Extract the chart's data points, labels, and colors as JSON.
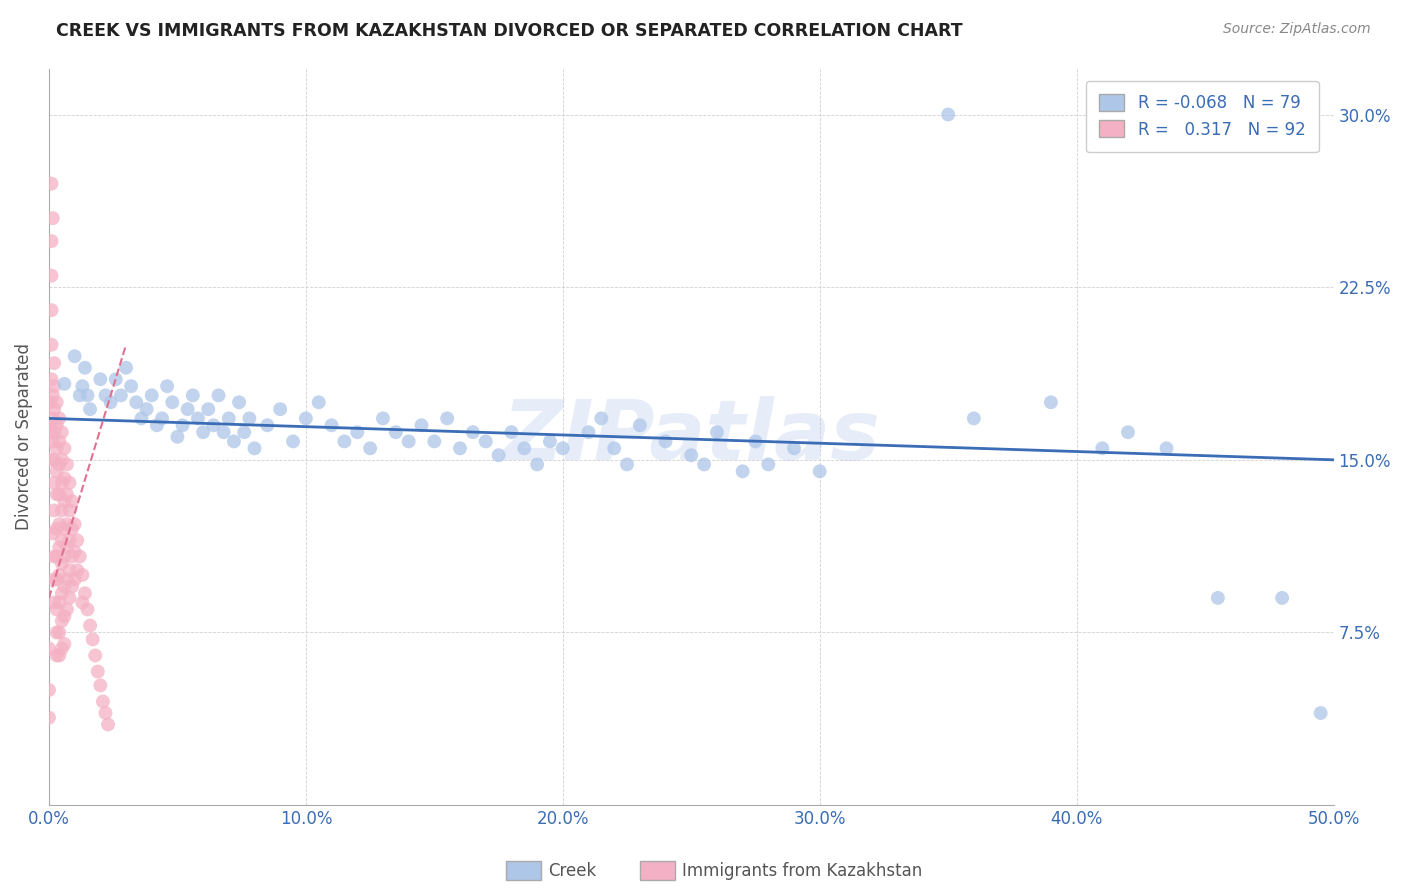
{
  "title": "CREEK VS IMMIGRANTS FROM KAZAKHSTAN DIVORCED OR SEPARATED CORRELATION CHART",
  "source": "Source: ZipAtlas.com",
  "ylabel": "Divorced or Separated",
  "xlim": [
    0.0,
    0.5
  ],
  "ylim": [
    0.0,
    0.32
  ],
  "xticks": [
    0.0,
    0.1,
    0.2,
    0.3,
    0.4,
    0.5
  ],
  "yticks": [
    0.075,
    0.15,
    0.225,
    0.3
  ],
  "xticklabels": [
    "0.0%",
    "10.0%",
    "20.0%",
    "30.0%",
    "40.0%",
    "50.0%"
  ],
  "yticklabels": [
    "7.5%",
    "15.0%",
    "22.5%",
    "30.0%"
  ],
  "watermark": "ZIPatlas",
  "creek_color": "#aec6e8",
  "kazakhstan_color": "#f4b0c4",
  "trendline_creek_color": "#3a6db5",
  "trendline_kazakhstan_color": "#e07090",
  "creek_R": -0.068,
  "creek_N": 79,
  "kazakhstan_R": 0.317,
  "kazakhstan_N": 92,
  "creek_trendline_x": [
    0.0,
    0.5
  ],
  "creek_trendline_y": [
    0.168,
    0.15
  ],
  "kaz_trendline_x": [
    0.0,
    0.03
  ],
  "kaz_trendline_y": [
    0.09,
    0.2
  ],
  "creek_scatter": [
    [
      0.006,
      0.183
    ],
    [
      0.01,
      0.195
    ],
    [
      0.012,
      0.178
    ],
    [
      0.013,
      0.182
    ],
    [
      0.014,
      0.19
    ],
    [
      0.015,
      0.178
    ],
    [
      0.016,
      0.172
    ],
    [
      0.02,
      0.185
    ],
    [
      0.022,
      0.178
    ],
    [
      0.024,
      0.175
    ],
    [
      0.026,
      0.185
    ],
    [
      0.028,
      0.178
    ],
    [
      0.03,
      0.19
    ],
    [
      0.032,
      0.182
    ],
    [
      0.034,
      0.175
    ],
    [
      0.036,
      0.168
    ],
    [
      0.038,
      0.172
    ],
    [
      0.04,
      0.178
    ],
    [
      0.042,
      0.165
    ],
    [
      0.044,
      0.168
    ],
    [
      0.046,
      0.182
    ],
    [
      0.048,
      0.175
    ],
    [
      0.05,
      0.16
    ],
    [
      0.052,
      0.165
    ],
    [
      0.054,
      0.172
    ],
    [
      0.056,
      0.178
    ],
    [
      0.058,
      0.168
    ],
    [
      0.06,
      0.162
    ],
    [
      0.062,
      0.172
    ],
    [
      0.064,
      0.165
    ],
    [
      0.066,
      0.178
    ],
    [
      0.068,
      0.162
    ],
    [
      0.07,
      0.168
    ],
    [
      0.072,
      0.158
    ],
    [
      0.074,
      0.175
    ],
    [
      0.076,
      0.162
    ],
    [
      0.078,
      0.168
    ],
    [
      0.08,
      0.155
    ],
    [
      0.085,
      0.165
    ],
    [
      0.09,
      0.172
    ],
    [
      0.095,
      0.158
    ],
    [
      0.1,
      0.168
    ],
    [
      0.105,
      0.175
    ],
    [
      0.11,
      0.165
    ],
    [
      0.115,
      0.158
    ],
    [
      0.12,
      0.162
    ],
    [
      0.125,
      0.155
    ],
    [
      0.13,
      0.168
    ],
    [
      0.135,
      0.162
    ],
    [
      0.14,
      0.158
    ],
    [
      0.145,
      0.165
    ],
    [
      0.15,
      0.158
    ],
    [
      0.155,
      0.168
    ],
    [
      0.16,
      0.155
    ],
    [
      0.165,
      0.162
    ],
    [
      0.17,
      0.158
    ],
    [
      0.175,
      0.152
    ],
    [
      0.18,
      0.162
    ],
    [
      0.185,
      0.155
    ],
    [
      0.19,
      0.148
    ],
    [
      0.195,
      0.158
    ],
    [
      0.2,
      0.155
    ],
    [
      0.21,
      0.162
    ],
    [
      0.215,
      0.168
    ],
    [
      0.22,
      0.155
    ],
    [
      0.225,
      0.148
    ],
    [
      0.23,
      0.165
    ],
    [
      0.24,
      0.158
    ],
    [
      0.25,
      0.152
    ],
    [
      0.255,
      0.148
    ],
    [
      0.26,
      0.162
    ],
    [
      0.27,
      0.145
    ],
    [
      0.275,
      0.158
    ],
    [
      0.28,
      0.148
    ],
    [
      0.29,
      0.155
    ],
    [
      0.3,
      0.145
    ],
    [
      0.35,
      0.3
    ],
    [
      0.36,
      0.168
    ],
    [
      0.39,
      0.175
    ],
    [
      0.41,
      0.155
    ],
    [
      0.42,
      0.162
    ],
    [
      0.435,
      0.155
    ],
    [
      0.455,
      0.09
    ],
    [
      0.48,
      0.09
    ],
    [
      0.495,
      0.04
    ]
  ],
  "kazakhstan_scatter": [
    [
      0.0005,
      0.175
    ],
    [
      0.001,
      0.27
    ],
    [
      0.001,
      0.245
    ],
    [
      0.0015,
      0.255
    ],
    [
      0.0005,
      0.165
    ],
    [
      0.0005,
      0.15
    ],
    [
      0.001,
      0.23
    ],
    [
      0.001,
      0.215
    ],
    [
      0.001,
      0.2
    ],
    [
      0.001,
      0.185
    ],
    [
      0.0015,
      0.178
    ],
    [
      0.0015,
      0.168
    ],
    [
      0.001,
      0.162
    ],
    [
      0.0015,
      0.158
    ],
    [
      0.002,
      0.192
    ],
    [
      0.002,
      0.182
    ],
    [
      0.002,
      0.172
    ],
    [
      0.002,
      0.162
    ],
    [
      0.002,
      0.15
    ],
    [
      0.002,
      0.14
    ],
    [
      0.002,
      0.128
    ],
    [
      0.0015,
      0.118
    ],
    [
      0.002,
      0.108
    ],
    [
      0.002,
      0.098
    ],
    [
      0.002,
      0.088
    ],
    [
      0.003,
      0.175
    ],
    [
      0.003,
      0.165
    ],
    [
      0.003,
      0.155
    ],
    [
      0.003,
      0.145
    ],
    [
      0.003,
      0.135
    ],
    [
      0.003,
      0.12
    ],
    [
      0.003,
      0.108
    ],
    [
      0.003,
      0.098
    ],
    [
      0.003,
      0.085
    ],
    [
      0.003,
      0.075
    ],
    [
      0.003,
      0.065
    ],
    [
      0.004,
      0.168
    ],
    [
      0.004,
      0.158
    ],
    [
      0.004,
      0.148
    ],
    [
      0.004,
      0.135
    ],
    [
      0.004,
      0.122
    ],
    [
      0.004,
      0.112
    ],
    [
      0.004,
      0.1
    ],
    [
      0.004,
      0.088
    ],
    [
      0.004,
      0.075
    ],
    [
      0.004,
      0.065
    ],
    [
      0.005,
      0.162
    ],
    [
      0.005,
      0.15
    ],
    [
      0.005,
      0.14
    ],
    [
      0.005,
      0.128
    ],
    [
      0.005,
      0.115
    ],
    [
      0.005,
      0.105
    ],
    [
      0.005,
      0.092
    ],
    [
      0.005,
      0.08
    ],
    [
      0.005,
      0.068
    ],
    [
      0.006,
      0.155
    ],
    [
      0.006,
      0.142
    ],
    [
      0.006,
      0.132
    ],
    [
      0.006,
      0.12
    ],
    [
      0.006,
      0.108
    ],
    [
      0.006,
      0.095
    ],
    [
      0.006,
      0.082
    ],
    [
      0.006,
      0.07
    ],
    [
      0.007,
      0.148
    ],
    [
      0.007,
      0.135
    ],
    [
      0.007,
      0.122
    ],
    [
      0.007,
      0.112
    ],
    [
      0.007,
      0.098
    ],
    [
      0.007,
      0.085
    ],
    [
      0.008,
      0.14
    ],
    [
      0.008,
      0.128
    ],
    [
      0.008,
      0.115
    ],
    [
      0.008,
      0.102
    ],
    [
      0.008,
      0.09
    ],
    [
      0.009,
      0.132
    ],
    [
      0.009,
      0.12
    ],
    [
      0.009,
      0.108
    ],
    [
      0.009,
      0.095
    ],
    [
      0.01,
      0.122
    ],
    [
      0.01,
      0.11
    ],
    [
      0.01,
      0.098
    ],
    [
      0.011,
      0.115
    ],
    [
      0.011,
      0.102
    ],
    [
      0.012,
      0.108
    ],
    [
      0.013,
      0.1
    ],
    [
      0.013,
      0.088
    ],
    [
      0.014,
      0.092
    ],
    [
      0.015,
      0.085
    ],
    [
      0.016,
      0.078
    ],
    [
      0.017,
      0.072
    ],
    [
      0.018,
      0.065
    ],
    [
      0.019,
      0.058
    ],
    [
      0.02,
      0.052
    ],
    [
      0.021,
      0.045
    ],
    [
      0.022,
      0.04
    ],
    [
      0.023,
      0.035
    ],
    [
      0.0,
      0.068
    ],
    [
      0.0,
      0.05
    ],
    [
      0.0,
      0.038
    ]
  ]
}
